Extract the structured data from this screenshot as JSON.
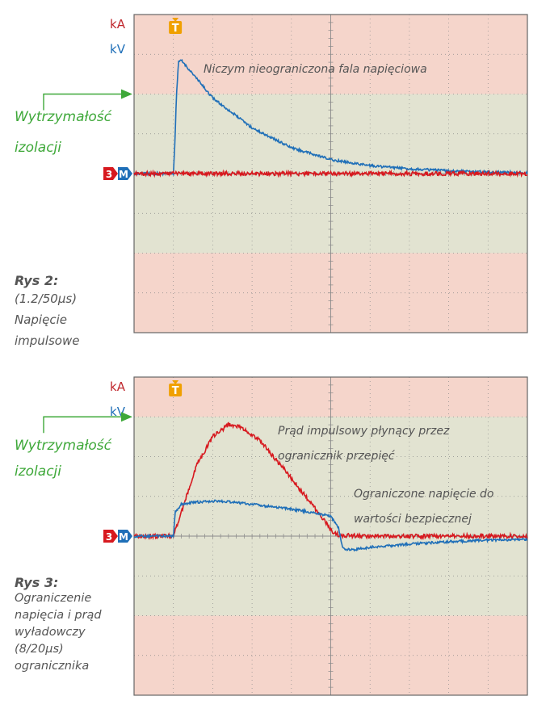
{
  "colors": {
    "pink": "#f5d5cb",
    "green": "#e2e3d1",
    "blue": "#1f6fb8",
    "red": "#d7191f",
    "green_label": "#3ea839",
    "orange": "#f0a000",
    "dark_red": "#c0272d",
    "grid_border": "#666666",
    "grid_dots": "#8a8a8a"
  },
  "chart_data": [
    {
      "type": "line",
      "channel_labels": {
        "current": "kA",
        "voltage": "kV"
      },
      "trigger_marker": "T",
      "channel_markers": {
        "current": "3",
        "voltage": "M"
      },
      "level_label": [
        "Wytrzymałość",
        "izolacji"
      ],
      "annotations": [
        "Niczym nieograniczona fala napięciowa"
      ],
      "caption": {
        "title": "Rys 2:",
        "lines": [
          "(1.2/50µs)",
          "Napięcie",
          "impulsowe"
        ]
      },
      "grid": {
        "x_divisions": 10,
        "y_divisions": 8
      },
      "xlim": [
        0,
        10
      ],
      "ylim": [
        -4,
        4
      ],
      "insulation_level_div": 2,
      "series": [
        {
          "channel": "kV",
          "color": "#1f6fb8",
          "kind": "impulse_1.2_50",
          "points": [
            [
              0,
              0
            ],
            [
              1.0,
              0
            ],
            [
              1.04,
              0.8
            ],
            [
              1.08,
              2.0
            ],
            [
              1.13,
              2.8
            ],
            [
              1.2,
              2.85
            ],
            [
              1.5,
              2.5
            ],
            [
              2,
              1.9
            ],
            [
              3,
              1.15
            ],
            [
              4,
              0.65
            ],
            [
              5,
              0.35
            ],
            [
              6,
              0.2
            ],
            [
              7,
              0.12
            ],
            [
              8,
              0.07
            ],
            [
              9,
              0.04
            ],
            [
              10,
              0.02
            ]
          ]
        },
        {
          "channel": "kA",
          "color": "#d7191f",
          "kind": "flat",
          "points": [
            [
              0,
              0
            ],
            [
              10,
              0
            ]
          ]
        }
      ]
    },
    {
      "type": "line",
      "channel_labels": {
        "current": "kA",
        "voltage": "kV"
      },
      "trigger_marker": "T",
      "channel_markers": {
        "current": "3",
        "voltage": "M"
      },
      "level_label": [
        "Wytrzymałość",
        "izolacji"
      ],
      "annotations": [
        "Prąd impulsowy płynący przez",
        "ogranicznik przepięć",
        "Ograniczone napięcie do",
        "wartości bezpiecznej"
      ],
      "caption": {
        "title": "Rys 3:",
        "lines": [
          "Ograniczenie",
          "napięcia i prąd",
          "wyładowczy",
          "(8/20µs)",
          "ogranicznika"
        ]
      },
      "grid": {
        "x_divisions": 10,
        "y_divisions": 8
      },
      "xlim": [
        0,
        10
      ],
      "ylim": [
        -4,
        4
      ],
      "insulation_level_div": 3,
      "series": [
        {
          "channel": "kA",
          "color": "#d7191f",
          "kind": "impulse_8_20",
          "points": [
            [
              0,
              0
            ],
            [
              1.0,
              0
            ],
            [
              1.1,
              0.3
            ],
            [
              1.3,
              0.9
            ],
            [
              1.6,
              1.8
            ],
            [
              2.0,
              2.5
            ],
            [
              2.4,
              2.8
            ],
            [
              2.7,
              2.75
            ],
            [
              3.2,
              2.4
            ],
            [
              3.8,
              1.7
            ],
            [
              4.4,
              0.95
            ],
            [
              4.8,
              0.45
            ],
            [
              5.0,
              0.15
            ],
            [
              5.2,
              0.02
            ],
            [
              6,
              0
            ],
            [
              10,
              0
            ]
          ]
        },
        {
          "channel": "kV",
          "color": "#1f6fb8",
          "kind": "clamped",
          "points": [
            [
              0,
              0
            ],
            [
              1.0,
              0
            ],
            [
              1.05,
              0.6
            ],
            [
              1.2,
              0.8
            ],
            [
              1.5,
              0.85
            ],
            [
              2,
              0.88
            ],
            [
              2.5,
              0.86
            ],
            [
              3,
              0.8
            ],
            [
              3.5,
              0.74
            ],
            [
              4,
              0.68
            ],
            [
              4.5,
              0.6
            ],
            [
              5.0,
              0.5
            ],
            [
              5.2,
              0.2
            ],
            [
              5.3,
              -0.3
            ],
            [
              5.5,
              -0.35
            ],
            [
              6,
              -0.28
            ],
            [
              7,
              -0.2
            ],
            [
              8,
              -0.14
            ],
            [
              9,
              -0.1
            ],
            [
              10,
              -0.08
            ]
          ]
        }
      ]
    }
  ]
}
